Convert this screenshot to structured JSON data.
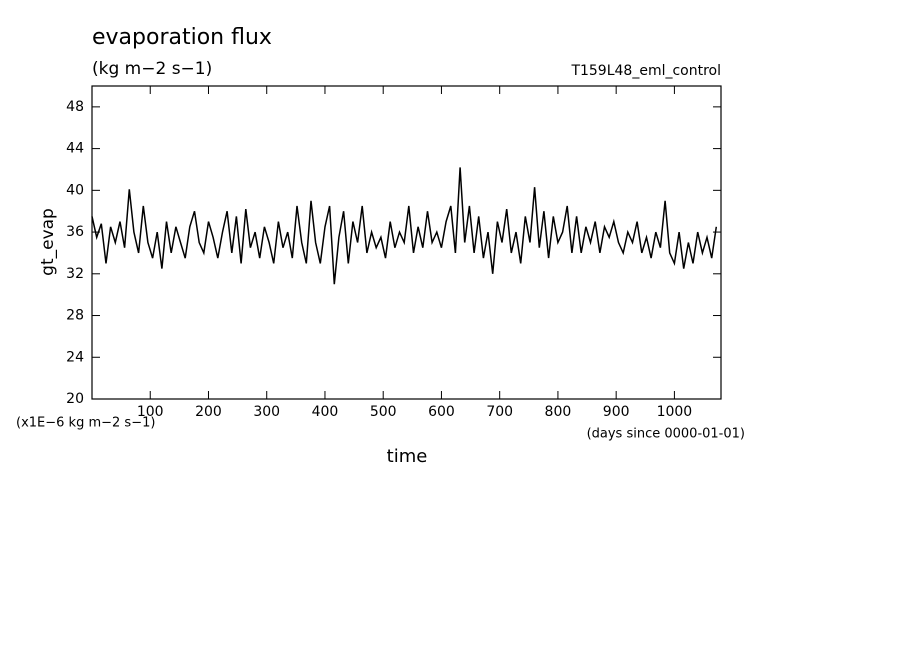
{
  "chart_data": {
    "type": "line",
    "title": "evaporation flux",
    "subtitle": "(kg m−2 s−1)",
    "experiment": "T159L48_eml_control",
    "ylabel": "gt_evap",
    "xlabel": "time",
    "y_units": "(x1E−6 kg m−2 s−1)",
    "x_units": "(days since 0000-01-01)",
    "xlim": [
      0,
      1080
    ],
    "ylim": [
      20,
      50
    ],
    "xticks": [
      100,
      200,
      300,
      400,
      500,
      600,
      700,
      800,
      900,
      1000
    ],
    "yticks": [
      20,
      24,
      28,
      32,
      36,
      40,
      44,
      48
    ],
    "color": "#000000",
    "x": [
      0,
      8,
      16,
      24,
      32,
      40,
      48,
      56,
      64,
      72,
      80,
      88,
      96,
      104,
      112,
      120,
      128,
      136,
      144,
      152,
      160,
      168,
      176,
      184,
      192,
      200,
      208,
      216,
      224,
      232,
      240,
      248,
      256,
      264,
      272,
      280,
      288,
      296,
      304,
      312,
      320,
      328,
      336,
      344,
      352,
      360,
      368,
      376,
      384,
      392,
      400,
      408,
      416,
      424,
      432,
      440,
      448,
      456,
      464,
      472,
      480,
      488,
      496,
      504,
      512,
      520,
      528,
      536,
      544,
      552,
      560,
      568,
      576,
      584,
      592,
      600,
      608,
      616,
      624,
      632,
      640,
      648,
      656,
      664,
      672,
      680,
      688,
      696,
      704,
      712,
      720,
      728,
      736,
      744,
      752,
      760,
      768,
      776,
      784,
      792,
      800,
      808,
      816,
      824,
      832,
      840,
      848,
      856,
      864,
      872,
      880,
      888,
      896,
      904,
      912,
      920,
      928,
      936,
      944,
      952,
      960,
      968,
      976,
      984,
      992,
      1000,
      1008,
      1016,
      1024,
      1032,
      1040,
      1048,
      1056,
      1064,
      1072
    ],
    "values": [
      37.5,
      35.5,
      36.8,
      33,
      36.5,
      35,
      37,
      34.5,
      40.1,
      36,
      34,
      38.5,
      35,
      33.5,
      36,
      32.5,
      37,
      34,
      36.5,
      35,
      33.5,
      36.5,
      38,
      35,
      34,
      37,
      35.5,
      33.5,
      36,
      38,
      34,
      37.5,
      33,
      38.2,
      34.5,
      36,
      33.5,
      36.5,
      35,
      33,
      37,
      34.5,
      36,
      33.5,
      38.5,
      35,
      33,
      39,
      35,
      33,
      36.5,
      38.5,
      31,
      35.5,
      38,
      33,
      37,
      35,
      38.5,
      34,
      36,
      34.5,
      35.5,
      33.5,
      37,
      34.5,
      36,
      35,
      38.5,
      34,
      36.5,
      34.5,
      38,
      35,
      36,
      34.5,
      37,
      38.5,
      34,
      42.2,
      35,
      38.5,
      34,
      37.5,
      33.5,
      36,
      32,
      37,
      35,
      38.2,
      34,
      36,
      33,
      37.5,
      35,
      40.3,
      34.5,
      38,
      33.5,
      37.5,
      35,
      36,
      38.5,
      34,
      37.5,
      34,
      36.5,
      35,
      37,
      34,
      36.5,
      35.5,
      37,
      35,
      34,
      36,
      35,
      37,
      34,
      35.5,
      33.5,
      36,
      34.5,
      39,
      34,
      33,
      36,
      32.5,
      35,
      33,
      36,
      34,
      35.5,
      33.5,
      36.5
    ]
  }
}
